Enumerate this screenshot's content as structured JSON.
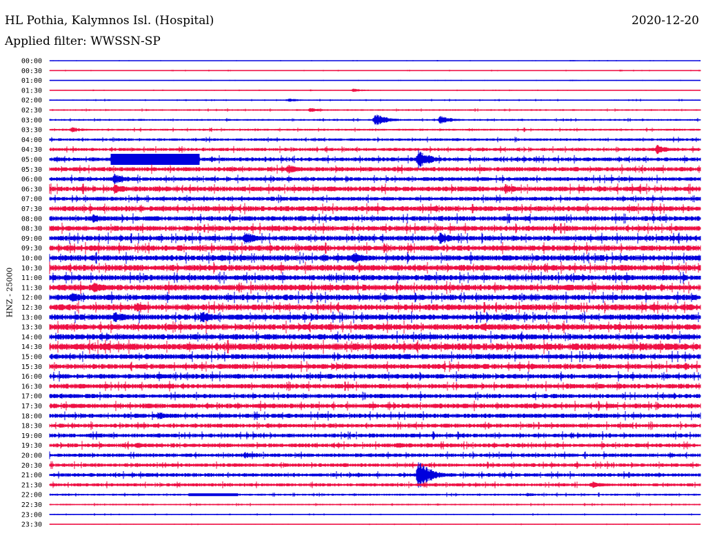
{
  "header": {
    "title": "HL Pothia, Kalymnos Isl. (Hospital)",
    "date": "2020-12-20",
    "filter": "Applied filter: WWSSN-SP"
  },
  "chart_data": {
    "type": "line",
    "title": "HL Pothia, Kalymnos Isl. (Hospital)",
    "subtitle": "Applied filter: WWSSN-SP",
    "ylabel": "HNZ - 25000",
    "xlabel": "",
    "rows": [
      "00:00",
      "00:30",
      "01:00",
      "01:30",
      "02:00",
      "02:30",
      "03:00",
      "03:30",
      "04:00",
      "04:30",
      "05:00",
      "05:30",
      "06:00",
      "06:30",
      "07:00",
      "07:30",
      "08:00",
      "08:30",
      "09:00",
      "09:30",
      "10:00",
      "10:30",
      "11:00",
      "11:30",
      "12:00",
      "12:30",
      "13:00",
      "13:30",
      "14:00",
      "14:30",
      "15:00",
      "15:30",
      "16:00",
      "16:30",
      "17:00",
      "17:30",
      "18:00",
      "18:30",
      "19:00",
      "19:30",
      "20:00",
      "20:30",
      "21:00",
      "21:30",
      "22:00",
      "22:30",
      "23:00",
      "23:30"
    ],
    "row_minutes": 30,
    "colors": {
      "even": "#0000dd",
      "odd": "#ee1144"
    },
    "noise_level": [
      0.3,
      0.4,
      0.3,
      0.4,
      0.6,
      0.8,
      0.9,
      1.0,
      1.3,
      1.6,
      2.0,
      2.2,
      2.0,
      2.5,
      2.0,
      2.6,
      2.4,
      2.6,
      2.6,
      2.8,
      2.8,
      3.0,
      2.8,
      3.0,
      2.8,
      3.0,
      2.8,
      3.0,
      2.8,
      3.4,
      2.6,
      2.6,
      2.4,
      2.4,
      2.2,
      2.4,
      2.2,
      2.0,
      2.0,
      2.0,
      1.8,
      1.8,
      1.8,
      1.6,
      1.0,
      0.8,
      0.6,
      0.4
    ],
    "events": [
      {
        "row": 0,
        "minute": 24,
        "amplitude": 1.2
      },
      {
        "row": 2,
        "minute": 24,
        "amplitude": 1.3
      },
      {
        "row": 3,
        "minute": 14,
        "amplitude": 2.5
      },
      {
        "row": 4,
        "minute": 11,
        "amplitude": 3.0
      },
      {
        "row": 5,
        "minute": 12,
        "amplitude": 3.5
      },
      {
        "row": 6,
        "minute": 15,
        "amplitude": 9.0
      },
      {
        "row": 6,
        "minute": 18,
        "amplitude": 6.0
      },
      {
        "row": 7,
        "minute": 1,
        "amplitude": 4.0
      },
      {
        "row": 9,
        "minute": 28,
        "amplitude": 7.0
      },
      {
        "row": 10,
        "minute": 3,
        "amplitude": 12.0
      },
      {
        "row": 10,
        "minute": 17,
        "amplitude": 14.0
      },
      {
        "row": 11,
        "minute": 11,
        "amplitude": 7.0
      },
      {
        "row": 12,
        "minute": 3,
        "amplitude": 9.0
      },
      {
        "row": 13,
        "minute": 3,
        "amplitude": 8.0
      },
      {
        "row": 13,
        "minute": 21,
        "amplitude": 7.0
      },
      {
        "row": 16,
        "minute": 2,
        "amplitude": 7.0
      },
      {
        "row": 18,
        "minute": 9,
        "amplitude": 10.0
      },
      {
        "row": 18,
        "minute": 18,
        "amplitude": 9.0
      },
      {
        "row": 20,
        "minute": 14,
        "amplitude": 9.0
      },
      {
        "row": 23,
        "minute": 2,
        "amplitude": 8.0
      },
      {
        "row": 24,
        "minute": 1,
        "amplitude": 8.0
      },
      {
        "row": 25,
        "minute": 4,
        "amplitude": 7.0
      },
      {
        "row": 26,
        "minute": 3,
        "amplitude": 9.0
      },
      {
        "row": 26,
        "minute": 7,
        "amplitude": 10.0
      },
      {
        "row": 26,
        "minute": 21,
        "amplitude": 7.0
      },
      {
        "row": 27,
        "minute": 20,
        "amplitude": 7.0
      },
      {
        "row": 36,
        "minute": 5,
        "amplitude": 6.0
      },
      {
        "row": 39,
        "minute": 4,
        "amplitude": 5.0
      },
      {
        "row": 39,
        "minute": 16,
        "amplitude": 5.0
      },
      {
        "row": 40,
        "minute": 9,
        "amplitude": 5.0
      },
      {
        "row": 42,
        "minute": 17,
        "amplitude": 22.0
      },
      {
        "row": 43,
        "minute": 25,
        "amplitude": 5.0
      },
      {
        "row": 44,
        "minute": 22,
        "amplitude": 3.0
      }
    ],
    "saturated_segments": [
      {
        "row": 10,
        "start_minute": 2.8,
        "end_minute": 6.9,
        "amplitude": 8.0
      },
      {
        "row": 44,
        "start_minute": 6.4,
        "end_minute": 8.7,
        "amplitude": 2.0
      }
    ]
  }
}
